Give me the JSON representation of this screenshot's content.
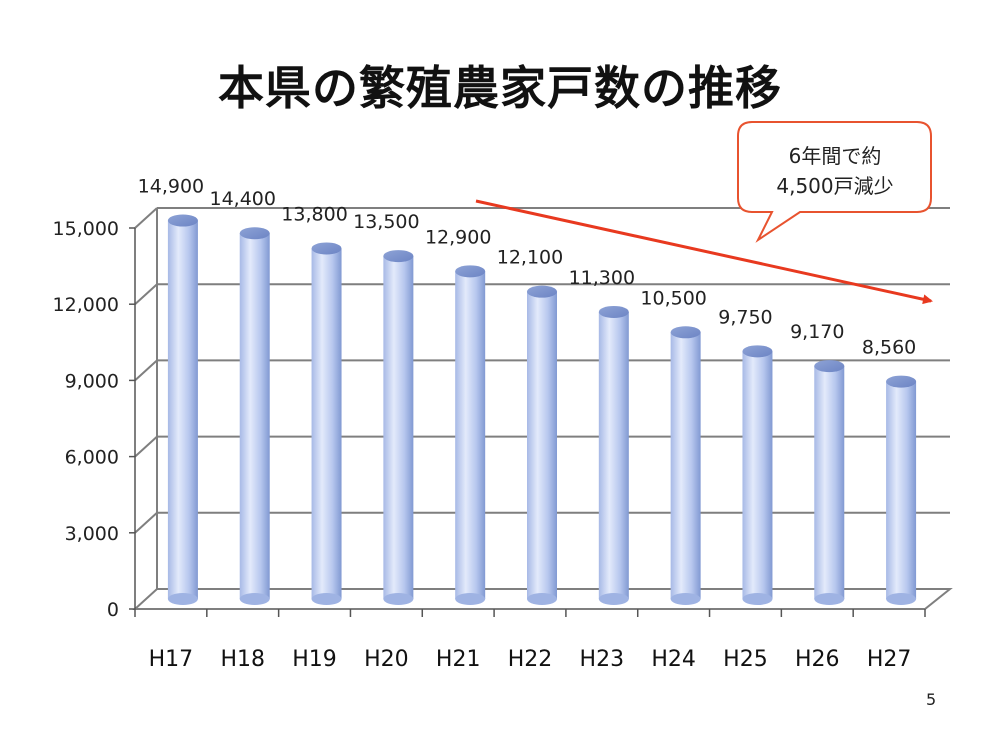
{
  "slide": {
    "title": "本県の繁殖農家戸数の推移",
    "page_number": "5"
  },
  "callout": {
    "line1": "6年間で約",
    "line2": "4,500戸減少"
  },
  "colors": {
    "bar_light": "#dde6fa",
    "bar_dark": "#8aa1d8",
    "trend_arrow": "#e8391f",
    "callout_border": "#e8532f",
    "gridline": "#7f7f7f"
  },
  "chart_data": {
    "type": "bar",
    "title": "",
    "xlabel": "",
    "ylabel": "",
    "categories": [
      "H17",
      "H18",
      "H19",
      "H20",
      "H21",
      "H22",
      "H23",
      "H24",
      "H25",
      "H26",
      "H27"
    ],
    "values": [
      14900,
      14400,
      13800,
      13500,
      12900,
      12100,
      11300,
      10500,
      9750,
      9170,
      8560
    ],
    "value_labels": [
      "14,900",
      "14,400",
      "13,800",
      "13,500",
      "12,900",
      "12,100",
      "11,300",
      "10,500",
      "9,750",
      "9,170",
      "8,560"
    ],
    "ylim": [
      0,
      15000
    ],
    "yticks": [
      0,
      3000,
      6000,
      9000,
      12000,
      15000
    ],
    "ytick_labels": [
      "0",
      "3,000",
      "6,000",
      "9,000",
      "12,000",
      "15,000"
    ],
    "grid": true,
    "style": "3d-cylinder",
    "annotation": {
      "type": "trend-arrow",
      "text": "6年間で約4,500戸減少"
    }
  }
}
